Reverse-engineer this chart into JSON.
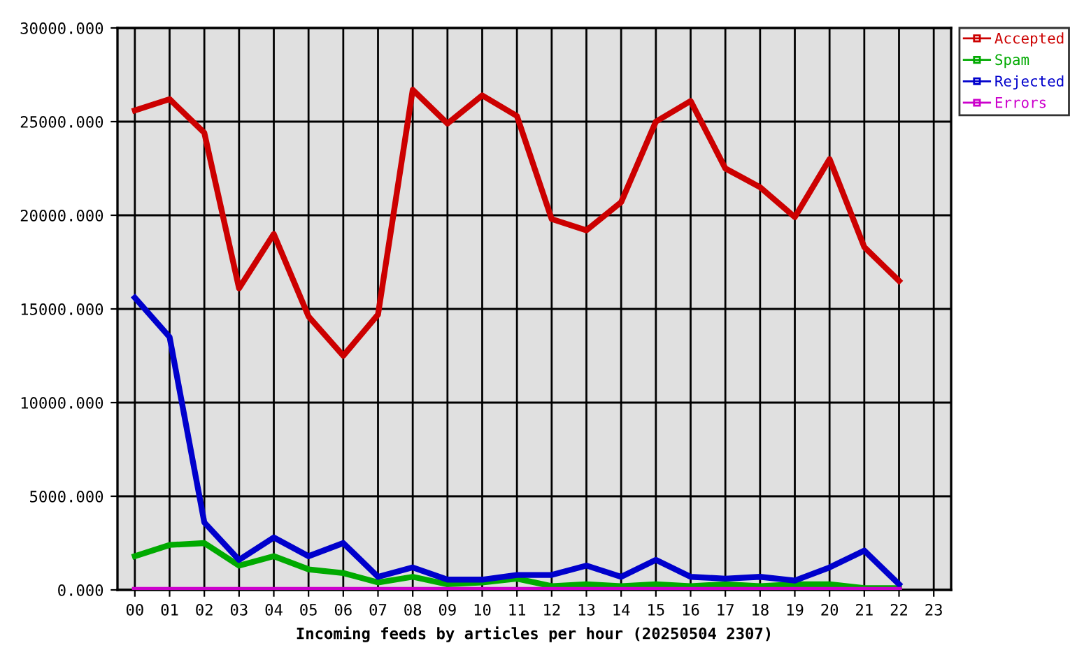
{
  "chart_data": {
    "type": "line",
    "xlabel": "Incoming feeds by articles per hour (20250504 2307)",
    "categories": [
      "00",
      "01",
      "02",
      "03",
      "04",
      "05",
      "06",
      "07",
      "08",
      "09",
      "10",
      "11",
      "12",
      "13",
      "14",
      "15",
      "16",
      "17",
      "18",
      "19",
      "20",
      "21",
      "22",
      "23"
    ],
    "series": [
      {
        "name": "Accepted",
        "color": "#cc0000",
        "values": [
          25600,
          26200,
          24400,
          16100,
          19000,
          14600,
          12500,
          14700,
          26700,
          24900,
          26400,
          25300,
          19800,
          19200,
          20700,
          25000,
          26100,
          22500,
          21500,
          19900,
          23000,
          18300,
          16500,
          null
        ]
      },
      {
        "name": "Spam",
        "color": "#00aa00",
        "values": [
          1800,
          2400,
          2500,
          1300,
          1800,
          1100,
          900,
          400,
          700,
          300,
          400,
          600,
          200,
          300,
          200,
          300,
          200,
          300,
          200,
          300,
          300,
          100,
          100,
          null
        ]
      },
      {
        "name": "Rejected",
        "color": "#0000cc",
        "values": [
          15600,
          13500,
          3600,
          1600,
          2800,
          1800,
          2500,
          700,
          1200,
          550,
          550,
          800,
          800,
          1300,
          700,
          1600,
          700,
          600,
          700,
          500,
          1200,
          2100,
          300,
          null
        ]
      },
      {
        "name": "Errors",
        "color": "#cc00cc",
        "values": [
          0,
          0,
          0,
          0,
          0,
          0,
          0,
          0,
          0,
          0,
          0,
          0,
          0,
          0,
          0,
          0,
          0,
          0,
          0,
          0,
          0,
          0,
          0,
          null
        ]
      }
    ],
    "ylim": [
      0,
      30000
    ],
    "yticks": [
      {
        "value": 0,
        "label": "0.000"
      },
      {
        "value": 5000,
        "label": "5000.000"
      },
      {
        "value": 10000,
        "label": "10000.000"
      },
      {
        "value": 15000,
        "label": "15000.000"
      },
      {
        "value": 20000,
        "label": "20000.000"
      },
      {
        "value": 25000,
        "label": "25000.000"
      },
      {
        "value": 30000,
        "label": "30000.000"
      }
    ],
    "grid": true,
    "legend": "top right",
    "marker": "none",
    "line_style": "solid"
  }
}
